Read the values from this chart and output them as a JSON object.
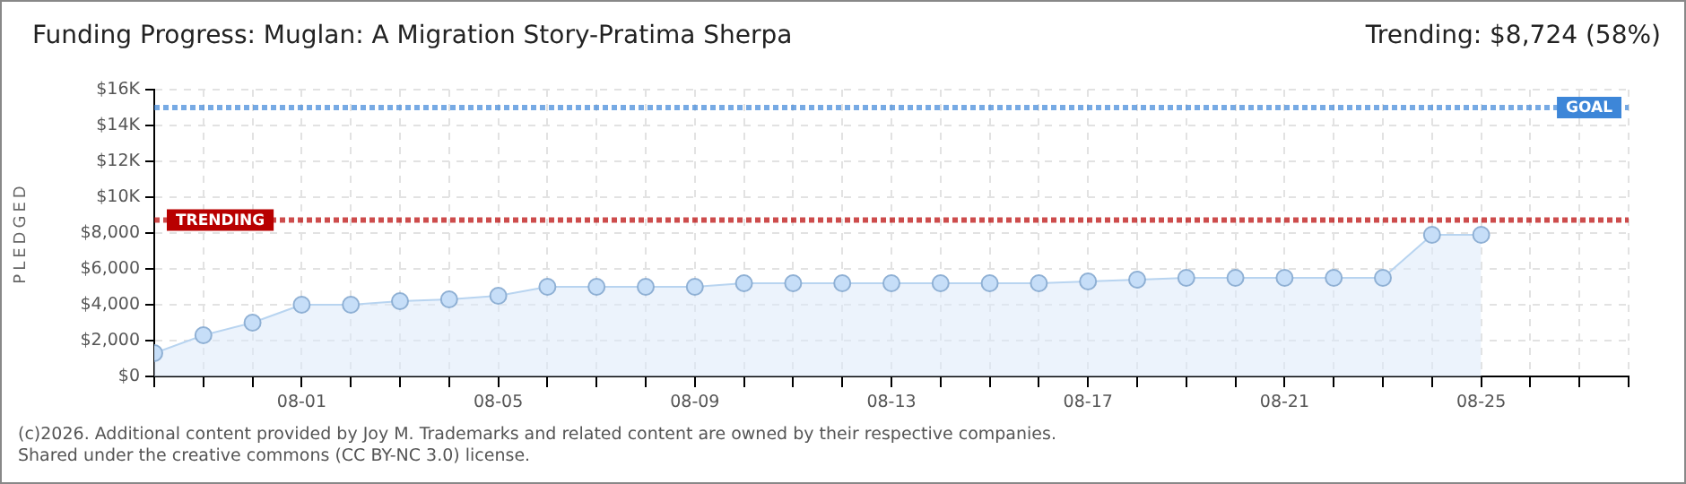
{
  "chart_data": {
    "type": "area",
    "title": "Funding Progress: Muglan: A Migration Story-Pratima Sherpa",
    "subtitle": "Trending: $8,724 (58%)",
    "ylabel": "PLEDGED",
    "annotations": [
      "(c)2026. Additional content provided by Joy M. Trademarks and related content are owned by their respective companies.",
      "Shared under the creative commons (CC BY-NC 3.0) license."
    ],
    "x": [
      "--07-29",
      "--07-30",
      "--07-31",
      "--08-01",
      "--08-02",
      "--08-03",
      "--08-04",
      "--08-05",
      "--08-06",
      "--08-07",
      "--08-08",
      "--08-09",
      "--08-10",
      "--08-11",
      "--08-12",
      "--08-13",
      "--08-14",
      "--08-15",
      "--08-16",
      "--08-17",
      "--08-18",
      "--08-19",
      "--08-20",
      "--08-21",
      "--08-22",
      "--08-23",
      "--08-24",
      "--08-25"
    ],
    "series": [
      {
        "color": "#b8d4f0",
        "values": [
          1300,
          2300,
          3000,
          4000,
          4000,
          4200,
          4300,
          4500,
          5000,
          5000,
          5000,
          5000,
          5200,
          5200,
          5200,
          5200,
          5200,
          5200,
          5200,
          5300,
          5400,
          5500,
          5500,
          5500,
          5500,
          5500,
          7900,
          7900
        ]
      }
    ],
    "xlim": [
      "--07-29",
      "--08-28"
    ],
    "xticks": [
      {
        "value": "--07-29",
        "label": null
      },
      {
        "value": "--07-30",
        "label": null
      },
      {
        "value": "--07-31",
        "label": null
      },
      {
        "value": "--08-01",
        "label": "08-01"
      },
      {
        "value": "--08-02",
        "label": null
      },
      {
        "value": "--08-03",
        "label": null
      },
      {
        "value": "--08-04",
        "label": null
      },
      {
        "value": "--08-05",
        "label": "08-05"
      },
      {
        "value": "--08-06",
        "label": null
      },
      {
        "value": "--08-07",
        "label": null
      },
      {
        "value": "--08-08",
        "label": null
      },
      {
        "value": "--08-09",
        "label": "08-09"
      },
      {
        "value": "--08-10",
        "label": null
      },
      {
        "value": "--08-11",
        "label": null
      },
      {
        "value": "--08-12",
        "label": null
      },
      {
        "value": "--08-13",
        "label": "08-13"
      },
      {
        "value": "--08-14",
        "label": null
      },
      {
        "value": "--08-15",
        "label": null
      },
      {
        "value": "--08-16",
        "label": null
      },
      {
        "value": "--08-17",
        "label": "08-17"
      },
      {
        "value": "--08-18",
        "label": null
      },
      {
        "value": "--08-19",
        "label": null
      },
      {
        "value": "--08-20",
        "label": null
      },
      {
        "value": "--08-21",
        "label": "08-21"
      },
      {
        "value": "--08-22",
        "label": null
      },
      {
        "value": "--08-23",
        "label": null
      },
      {
        "value": "--08-24",
        "label": null
      },
      {
        "value": "--08-25",
        "label": "08-25"
      },
      {
        "value": "--08-26",
        "label": null
      },
      {
        "value": "--08-27",
        "label": null
      },
      {
        "value": "--08-28",
        "label": null
      }
    ],
    "ylim": [
      0,
      16000
    ],
    "yticks": [
      {
        "value": 0,
        "label": "$0"
      },
      {
        "value": 2000,
        "label": "$2,000"
      },
      {
        "value": 4000,
        "label": "$4,000"
      },
      {
        "value": 6000,
        "label": "$6,000"
      },
      {
        "value": 8000,
        "label": "$8,000"
      },
      {
        "value": 10000,
        "label": "$10K"
      },
      {
        "value": 12000,
        "label": "$12K"
      },
      {
        "value": 14000,
        "label": "$14K"
      },
      {
        "value": 16000,
        "label": "$16K"
      }
    ],
    "grid": true,
    "marker": "circle",
    "ref_lines": [
      {
        "axis": "y",
        "value": 15000,
        "label": "GOAL",
        "color": "#3d86d8"
      },
      {
        "axis": "y",
        "value": 8724,
        "label": "TRENDING",
        "color": "#b80000"
      }
    ]
  }
}
